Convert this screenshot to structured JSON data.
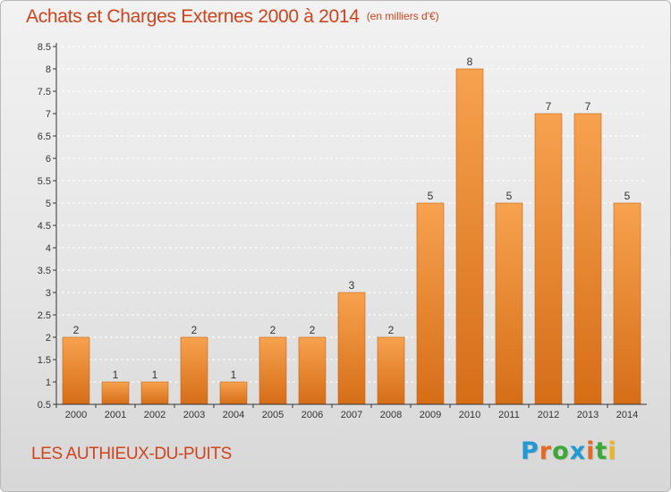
{
  "header": {
    "title": "Achats et Charges Externes 2000 à 2014",
    "unit": "(en milliers d'€)"
  },
  "footer": {
    "commune": "LES AUTHIEUX-DU-PUITS",
    "logo": "Proxiti"
  },
  "colors": {
    "bar_top": "#f7a24f",
    "bar_bottom": "#d66d17",
    "title": "#d2431b",
    "axis": "#333333",
    "grid": "#ffffff",
    "logo_letters": [
      "#1f9ad6",
      "#e86a1e",
      "#3aa935",
      "#1f9ad6",
      "#e86a1e",
      "#3aa935",
      "#e8b91e"
    ]
  },
  "chart_data": {
    "type": "bar",
    "title": "Achats et Charges Externes 2000 à 2014",
    "subtitle": "(en milliers d'€)",
    "categories": [
      "2000",
      "2001",
      "2002",
      "2003",
      "2004",
      "2005",
      "2006",
      "2007",
      "2008",
      "2009",
      "2010",
      "2011",
      "2012",
      "2013",
      "2014"
    ],
    "values": [
      2,
      1,
      1,
      2,
      1,
      2,
      2,
      3,
      2,
      5,
      8,
      5,
      7,
      7,
      5
    ],
    "data_labels": [
      "2",
      "1",
      "1",
      "2",
      "1",
      "2",
      "2",
      "3",
      "2",
      "5",
      "8",
      "5",
      "7",
      "7",
      "5"
    ],
    "ylim": [
      0.5,
      8.5
    ],
    "yticks": [
      "0.5",
      "1",
      "1.5",
      "2",
      "2.5",
      "3",
      "3.5",
      "4",
      "4.5",
      "5",
      "5.5",
      "6",
      "6.5",
      "7",
      "7.5",
      "8",
      "8.5"
    ],
    "grid": true,
    "xlabel": "",
    "ylabel": ""
  }
}
